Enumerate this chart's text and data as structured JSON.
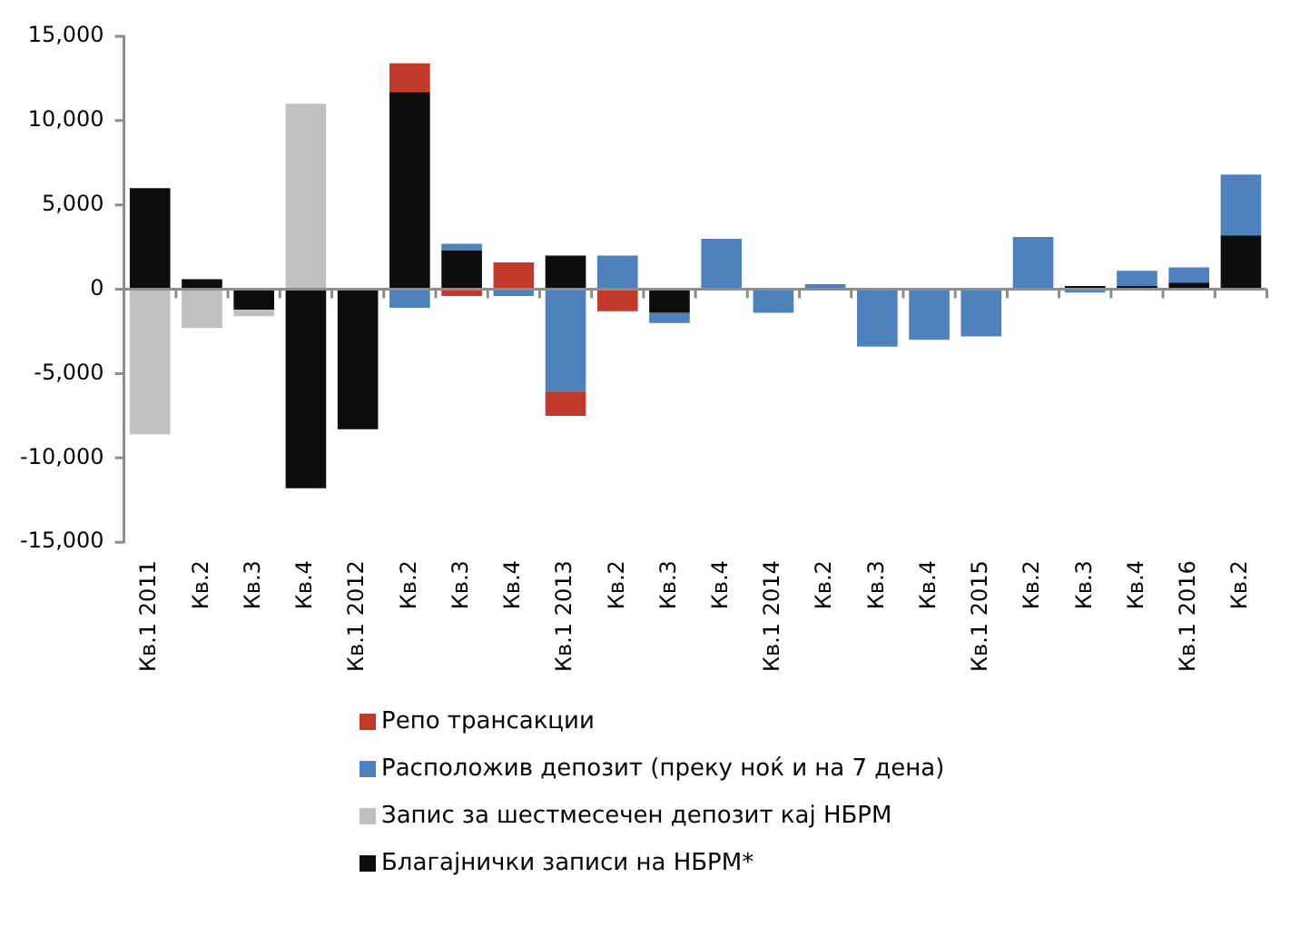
{
  "chart_data": {
    "type": "bar",
    "stacked": true,
    "categories": [
      "Кв.1 2011",
      "Кв.2",
      "Кв.3",
      "Кв.4",
      "Кв.1 2012",
      "Кв.2",
      "Кв.3",
      "Кв.4",
      "Кв.1 2013",
      "Кв.2",
      "Кв.3",
      "Кв.4",
      "Кв.1 2014",
      "Кв.2",
      "Кв.3",
      "Кв.4",
      "Кв.1 2015",
      "Кв.2",
      "Кв.3",
      "Кв.4",
      "Кв.1 2016",
      "Кв.2"
    ],
    "series": [
      {
        "name": "Благајнички записи на НБРМ*",
        "color": "#0d0d0d",
        "values": [
          6000,
          600,
          -1200,
          -11800,
          -8300,
          11700,
          2300,
          null,
          2000,
          null,
          -1400,
          null,
          null,
          null,
          null,
          null,
          null,
          null,
          200,
          200,
          400,
          3200
        ]
      },
      {
        "name": "Запис за шестмесечен депозит кај НБРМ",
        "color": "#c0c0c0",
        "values": [
          -8600,
          -2300,
          -400,
          11000,
          null,
          null,
          null,
          null,
          null,
          null,
          null,
          null,
          null,
          null,
          null,
          null,
          null,
          null,
          null,
          null,
          null,
          null
        ]
      },
      {
        "name": "Расположив депозит (преку ноќ и на 7 дена)",
        "color": "#4f81bd",
        "values": [
          null,
          null,
          null,
          null,
          null,
          -1100,
          400,
          -400,
          -6100,
          2000,
          -600,
          3000,
          -1400,
          300,
          -3400,
          -3000,
          -2800,
          3100,
          -200,
          900,
          900,
          3600
        ]
      },
      {
        "name": "Репо трансакции",
        "color": "#c0392b",
        "values": [
          null,
          null,
          null,
          null,
          null,
          1700,
          -400,
          1600,
          -1400,
          -1300,
          null,
          null,
          null,
          null,
          null,
          null,
          null,
          null,
          null,
          null,
          null,
          null
        ]
      }
    ],
    "ylim": [
      -15000,
      15000
    ],
    "yticks": [
      {
        "value": -15000,
        "label": "-15,000"
      },
      {
        "value": -10000,
        "label": "-10,000"
      },
      {
        "value": -5000,
        "label": "-5,000"
      },
      {
        "value": 0,
        "label": "0"
      },
      {
        "value": 5000,
        "label": "5,000"
      },
      {
        "value": 10000,
        "label": "10,000"
      },
      {
        "value": 15000,
        "label": "15,000"
      }
    ],
    "ref_lines": [
      {
        "axis": "y",
        "value": 0,
        "color": "#8c8c8c"
      }
    ],
    "grid": false,
    "legend": "bottom"
  }
}
